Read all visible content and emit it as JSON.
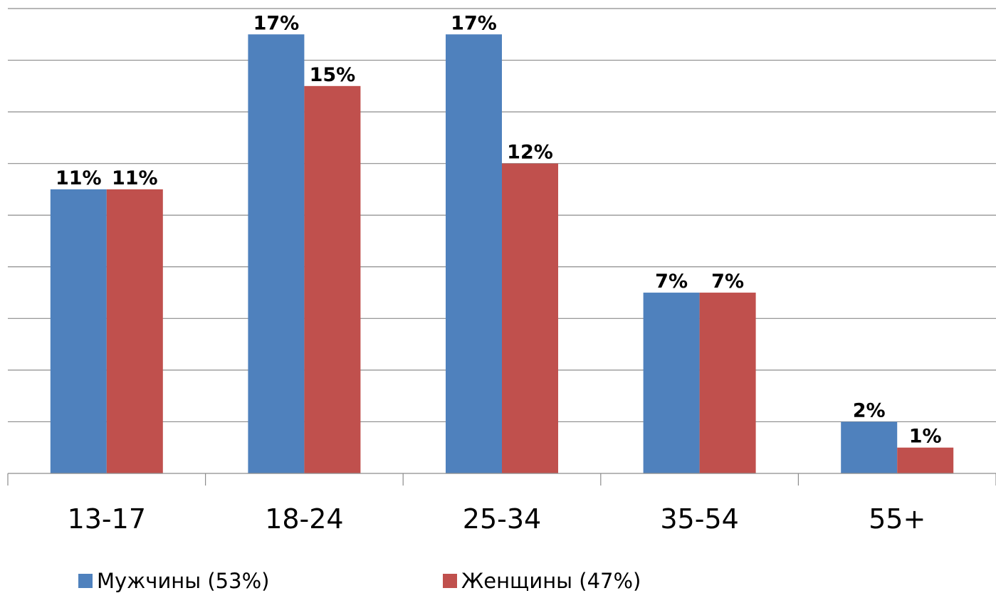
{
  "chart_data": {
    "type": "bar",
    "categories": [
      "13-17",
      "18-24",
      "25-34",
      "35-54",
      "55+"
    ],
    "series": [
      {
        "name": "Мужчины (53%)",
        "values": [
          11,
          17,
          17,
          7,
          2
        ],
        "labels": [
          "11%",
          "17%",
          "17%",
          "7%",
          "2%"
        ],
        "color": "#4f81bd"
      },
      {
        "name": "Женщины (47%)",
        "values": [
          11,
          15,
          12,
          7,
          1
        ],
        "labels": [
          "11%",
          "15%",
          "12%",
          "7%",
          "1%"
        ],
        "color": "#c0504d"
      }
    ],
    "ylim": [
      0,
      18
    ],
    "grid": true,
    "legend": "bottom",
    "title": "",
    "xlabel": "",
    "ylabel": ""
  }
}
